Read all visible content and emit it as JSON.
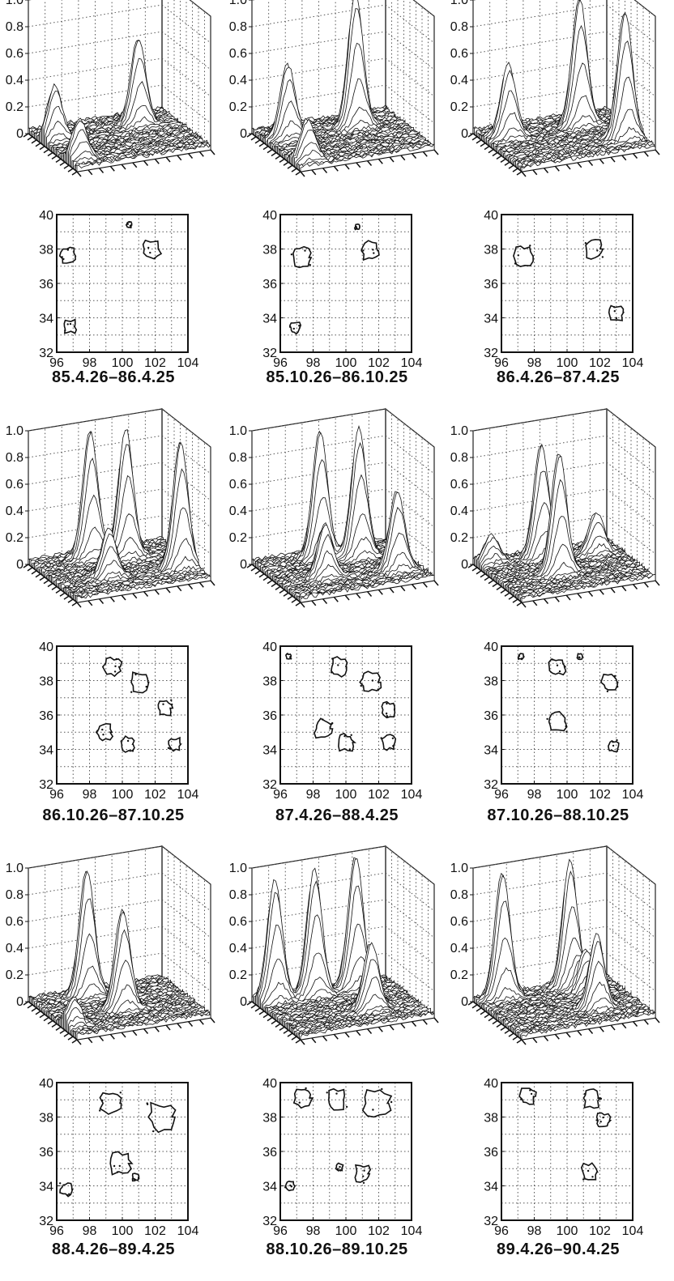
{
  "chart_data": {
    "type": "small-multiples",
    "surface": {
      "type": "surface",
      "z_ticks": [
        "0",
        "0.2",
        "0.4",
        "0.6",
        "0.8",
        "1.0"
      ],
      "zlim": [
        0,
        1.0
      ],
      "grid": true
    },
    "contour": {
      "type": "contour",
      "x_ticks": [
        "96",
        "98",
        "100",
        "102",
        "104"
      ],
      "y_ticks": [
        "32",
        "34",
        "36",
        "38",
        "40"
      ],
      "xlim": [
        96,
        104
      ],
      "ylim": [
        32,
        40
      ],
      "grid": true
    },
    "panels": [
      {
        "label": "85.4.26–86.4.25",
        "peaks": [
          {
            "x": 96.7,
            "y": 37.6,
            "h": 0.4
          },
          {
            "x": 96.7,
            "y": 33.5,
            "h": 0.3
          },
          {
            "x": 101.8,
            "y": 37.9,
            "h": 0.65
          }
        ],
        "contours": [
          {
            "x": 96.7,
            "y": 37.6,
            "r": 0.45
          },
          {
            "x": 96.8,
            "y": 33.5,
            "r": 0.35
          },
          {
            "x": 101.8,
            "y": 38.0,
            "r": 0.5
          },
          {
            "x": 100.4,
            "y": 39.4,
            "r": 0.15
          }
        ]
      },
      {
        "label": "85.10.26–86.10.25",
        "peaks": [
          {
            "x": 97.3,
            "y": 37.7,
            "h": 0.55
          },
          {
            "x": 101.4,
            "y": 37.8,
            "h": 1.0
          },
          {
            "x": 96.9,
            "y": 33.3,
            "h": 0.3
          }
        ],
        "contours": [
          {
            "x": 97.3,
            "y": 37.5,
            "r": 0.55
          },
          {
            "x": 101.5,
            "y": 37.9,
            "r": 0.5
          },
          {
            "x": 96.9,
            "y": 33.4,
            "r": 0.3
          },
          {
            "x": 100.7,
            "y": 39.3,
            "r": 0.15
          }
        ]
      },
      {
        "label": "86.4.26–87.4.25",
        "peaks": [
          {
            "x": 97.3,
            "y": 37.8,
            "h": 0.55
          },
          {
            "x": 101.6,
            "y": 37.9,
            "h": 0.95
          },
          {
            "x": 103.0,
            "y": 34.3,
            "h": 0.95
          }
        ],
        "contours": [
          {
            "x": 97.3,
            "y": 37.6,
            "r": 0.55
          },
          {
            "x": 101.6,
            "y": 38.0,
            "r": 0.5
          },
          {
            "x": 103.0,
            "y": 34.3,
            "r": 0.4
          }
        ]
      },
      {
        "label": "86.10.26–87.10.25",
        "peaks": [
          {
            "x": 99.3,
            "y": 38.9,
            "h": 0.95
          },
          {
            "x": 101.1,
            "y": 38.0,
            "h": 0.95
          },
          {
            "x": 99.0,
            "y": 35.0,
            "h": 0.35
          },
          {
            "x": 103.1,
            "y": 34.5,
            "h": 0.95
          }
        ],
        "contours": [
          {
            "x": 99.4,
            "y": 38.8,
            "r": 0.5
          },
          {
            "x": 101.1,
            "y": 37.9,
            "r": 0.55
          },
          {
            "x": 102.6,
            "y": 36.4,
            "r": 0.4
          },
          {
            "x": 98.9,
            "y": 35.0,
            "r": 0.45
          },
          {
            "x": 100.3,
            "y": 34.3,
            "r": 0.4
          },
          {
            "x": 103.2,
            "y": 34.3,
            "r": 0.35
          }
        ]
      },
      {
        "label": "87.4.26–88.4.25",
        "peaks": [
          {
            "x": 99.6,
            "y": 38.7,
            "h": 0.95
          },
          {
            "x": 101.6,
            "y": 37.8,
            "h": 0.95
          },
          {
            "x": 98.6,
            "y": 35.1,
            "h": 0.4
          },
          {
            "x": 102.6,
            "y": 34.3,
            "h": 0.6
          }
        ],
        "contours": [
          {
            "x": 99.6,
            "y": 38.8,
            "r": 0.5
          },
          {
            "x": 101.5,
            "y": 37.9,
            "r": 0.55
          },
          {
            "x": 102.6,
            "y": 36.3,
            "r": 0.4
          },
          {
            "x": 98.6,
            "y": 35.2,
            "r": 0.5
          },
          {
            "x": 100.0,
            "y": 34.4,
            "r": 0.45
          },
          {
            "x": 102.6,
            "y": 34.4,
            "r": 0.4
          },
          {
            "x": 96.5,
            "y": 39.4,
            "r": 0.15
          }
        ]
      },
      {
        "label": "87.10.26–88.10.25",
        "peaks": [
          {
            "x": 99.6,
            "y": 38.7,
            "h": 0.85
          },
          {
            "x": 99.5,
            "y": 35.5,
            "h": 0.9
          },
          {
            "x": 102.6,
            "y": 37.9,
            "h": 0.3
          },
          {
            "x": 96.8,
            "y": 39.2,
            "h": 0.2
          }
        ],
        "contours": [
          {
            "x": 99.4,
            "y": 38.8,
            "r": 0.45
          },
          {
            "x": 99.4,
            "y": 35.6,
            "r": 0.55
          },
          {
            "x": 102.6,
            "y": 37.9,
            "r": 0.45
          },
          {
            "x": 102.8,
            "y": 34.2,
            "r": 0.3
          },
          {
            "x": 97.2,
            "y": 39.4,
            "r": 0.15
          },
          {
            "x": 100.8,
            "y": 39.4,
            "r": 0.15
          }
        ]
      },
      {
        "label": "88.4.26–89.4.25",
        "peaks": [
          {
            "x": 99.1,
            "y": 38.9,
            "h": 0.95
          },
          {
            "x": 100.0,
            "y": 35.5,
            "h": 0.75
          },
          {
            "x": 96.5,
            "y": 34.0,
            "h": 0.2
          }
        ],
        "contours": [
          {
            "x": 99.3,
            "y": 38.8,
            "r": 0.6
          },
          {
            "x": 102.4,
            "y": 38.0,
            "r": 0.75
          },
          {
            "x": 99.9,
            "y": 35.3,
            "r": 0.6
          },
          {
            "x": 96.6,
            "y": 33.8,
            "r": 0.35
          },
          {
            "x": 100.8,
            "y": 34.5,
            "r": 0.2
          }
        ]
      },
      {
        "label": "88.10.26–89.10.25",
        "peaks": [
          {
            "x": 97.0,
            "y": 39.0,
            "h": 0.9
          },
          {
            "x": 99.3,
            "y": 38.8,
            "h": 0.95
          },
          {
            "x": 101.8,
            "y": 38.9,
            "h": 1.0
          },
          {
            "x": 101.2,
            "y": 34.7,
            "h": 0.5
          }
        ],
        "contours": [
          {
            "x": 97.4,
            "y": 39.1,
            "r": 0.5
          },
          {
            "x": 99.4,
            "y": 39.0,
            "r": 0.55
          },
          {
            "x": 101.9,
            "y": 38.8,
            "r": 0.75
          },
          {
            "x": 101.0,
            "y": 34.7,
            "r": 0.45
          },
          {
            "x": 99.6,
            "y": 35.1,
            "r": 0.2
          },
          {
            "x": 96.6,
            "y": 34.0,
            "r": 0.25
          }
        ]
      },
      {
        "label": "89.4.26–90.4.25",
        "peaks": [
          {
            "x": 97.5,
            "y": 39.3,
            "h": 0.95
          },
          {
            "x": 101.5,
            "y": 39.2,
            "h": 0.95
          },
          {
            "x": 101.5,
            "y": 34.8,
            "h": 0.55
          },
          {
            "x": 102.0,
            "y": 37.9,
            "h": 0.3
          }
        ],
        "contours": [
          {
            "x": 97.6,
            "y": 39.2,
            "r": 0.45
          },
          {
            "x": 101.5,
            "y": 39.1,
            "r": 0.5
          },
          {
            "x": 102.2,
            "y": 37.8,
            "r": 0.4
          },
          {
            "x": 101.4,
            "y": 34.8,
            "r": 0.45
          }
        ]
      }
    ]
  }
}
